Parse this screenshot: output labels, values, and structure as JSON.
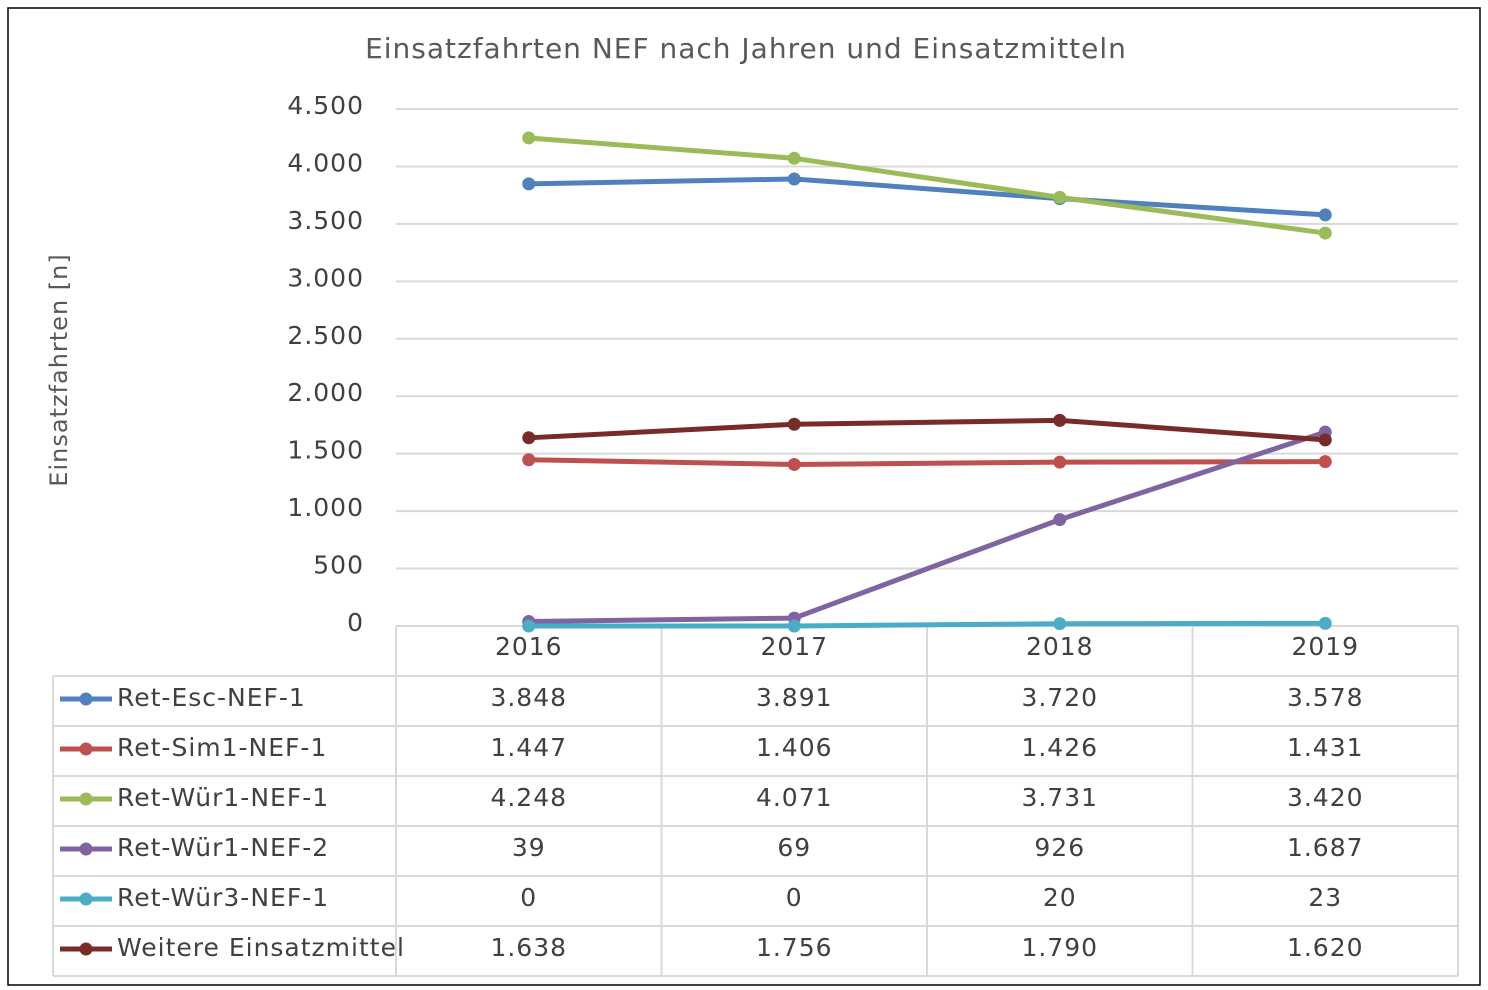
{
  "chart_data": {
    "type": "line",
    "title": "Einsatzfahrten NEF nach Jahren und Einsatzmitteln",
    "y_label": "Einsatzfahrten [n]",
    "categories": [
      "2016",
      "2017",
      "2018",
      "2019"
    ],
    "ylim": [
      0,
      4500
    ],
    "yticks": [
      0,
      500,
      {
        "value": 1000,
        "label": "1.000"
      },
      {
        "value": 1500,
        "label": "1.500"
      },
      {
        "value": 2000,
        "label": "2.000"
      },
      {
        "value": 2500,
        "label": "2.500"
      },
      {
        "value": 3000,
        "label": "3.000"
      },
      {
        "value": 3500,
        "label": "3.500"
      },
      {
        "value": 4000,
        "label": "4.000"
      },
      {
        "value": 4500,
        "label": "4.500"
      }
    ],
    "grid": true,
    "series": [
      {
        "name": "Ret-Esc-NEF-1",
        "color": "#4f81bd",
        "values": [
          3848,
          3891,
          3720,
          3578
        ],
        "value_labels": [
          "3.848",
          "3.891",
          "3.720",
          "3.578"
        ]
      },
      {
        "name": "Ret-Sim1-NEF-1",
        "color": "#c0504d",
        "values": [
          1447,
          1406,
          1426,
          1431
        ],
        "value_labels": [
          "1.447",
          "1.406",
          "1.426",
          "1.431"
        ]
      },
      {
        "name": "Ret-Wür1-NEF-1",
        "color": "#9bbb59",
        "values": [
          4248,
          4071,
          3731,
          3420
        ],
        "value_labels": [
          "4.248",
          "4.071",
          "3.731",
          "3.420"
        ]
      },
      {
        "name": "Ret-Wür1-NEF-2",
        "color": "#8064a2",
        "values": [
          39,
          69,
          926,
          1687
        ],
        "value_labels": [
          "39",
          "69",
          "926",
          "1.687"
        ]
      },
      {
        "name": "Ret-Wür3-NEF-1",
        "color": "#4bacc6",
        "values": [
          0,
          0,
          20,
          23
        ],
        "value_labels": [
          "0",
          "0",
          "20",
          "23"
        ]
      },
      {
        "name": "Weitere Einsatzmittel",
        "color": "#772c2a",
        "values": [
          1638,
          1756,
          1790,
          1620
        ],
        "value_labels": [
          "1.638",
          "1.756",
          "1.790",
          "1.620"
        ]
      }
    ]
  }
}
